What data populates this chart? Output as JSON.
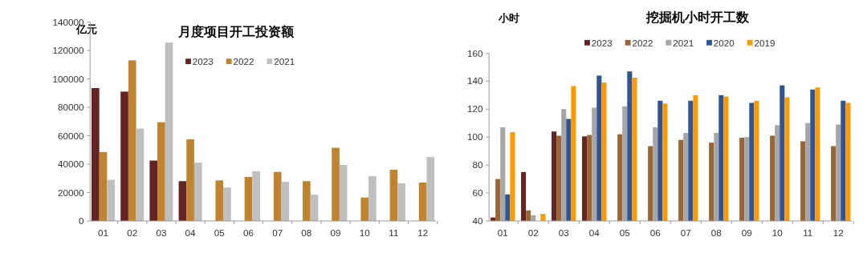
{
  "chart_data": [
    {
      "type": "bar",
      "title": "月度项目开工投资额",
      "ylabel": "亿元",
      "categories": [
        "01",
        "02",
        "03",
        "04",
        "05",
        "06",
        "07",
        "08",
        "09",
        "10",
        "11",
        "12"
      ],
      "series": [
        {
          "name": "2023",
          "color": "#632523",
          "values": [
            93500,
            91000,
            42500,
            28000,
            null,
            null,
            null,
            null,
            null,
            null,
            null,
            null
          ]
        },
        {
          "name": "2022",
          "color": "#c0832f",
          "values": [
            48500,
            113000,
            69500,
            57500,
            28500,
            31000,
            34500,
            28000,
            51500,
            16500,
            36000,
            27000
          ]
        },
        {
          "name": "2021",
          "color": "#bfbfbf",
          "values": [
            29000,
            65000,
            125500,
            41000,
            23500,
            35000,
            27500,
            18500,
            39500,
            31500,
            26500,
            45000
          ]
        }
      ],
      "ylim": [
        0,
        140000
      ],
      "yticks": [
        0,
        20000,
        40000,
        60000,
        80000,
        100000,
        120000,
        140000
      ],
      "legend": "top"
    },
    {
      "type": "bar",
      "title": "挖掘机小时开工数",
      "ylabel": "小时",
      "categories": [
        "01",
        "02",
        "03",
        "04",
        "05",
        "06",
        "07",
        "08",
        "09",
        "10",
        "11",
        "12"
      ],
      "series": [
        {
          "name": "2023",
          "color": "#632523",
          "values": [
            42.5,
            75,
            104,
            100.5,
            null,
            null,
            null,
            null,
            null,
            null,
            null,
            null
          ]
        },
        {
          "name": "2022",
          "color": "#996633",
          "values": [
            70,
            47.5,
            101,
            101.5,
            102,
            93.5,
            98,
            96,
            99.5,
            101,
            97,
            93.5
          ]
        },
        {
          "name": "2021",
          "color": "#a6a6a6",
          "values": [
            107,
            44,
            120,
            121,
            122,
            107,
            103,
            103,
            100,
            108.5,
            110,
            109
          ]
        },
        {
          "name": "2020",
          "color": "#2f5597",
          "values": [
            59,
            null,
            113,
            144,
            147,
            126,
            126,
            130,
            124.5,
            137,
            134,
            126
          ]
        },
        {
          "name": "2019",
          "color": "#ff9900",
          "values": [
            103.5,
            45,
            136.5,
            139,
            142.5,
            124,
            130,
            129,
            126,
            128.5,
            135.5,
            124.5
          ]
        }
      ],
      "ylim": [
        40,
        160
      ],
      "yticks": [
        40,
        60,
        80,
        100,
        120,
        140,
        160
      ],
      "legend": "top"
    }
  ]
}
